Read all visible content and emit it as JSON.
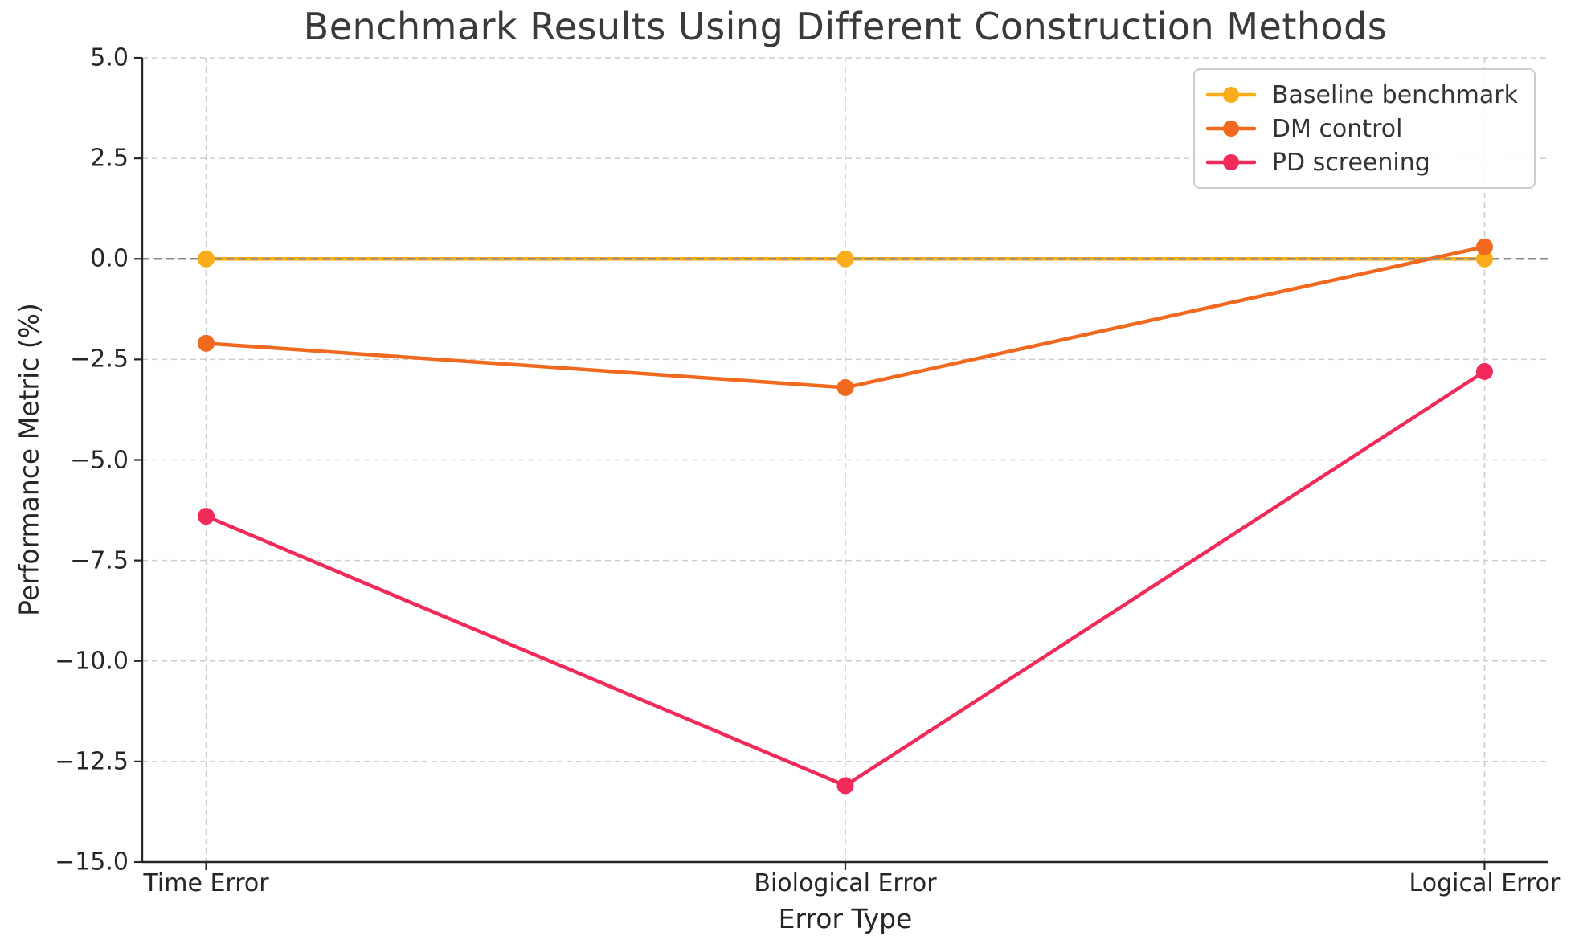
{
  "chart_data": {
    "type": "line",
    "title": "Benchmark Results Using Different Construction Methods",
    "xlabel": "Error Type",
    "ylabel": "Performance Metric (%)",
    "categories": [
      "Time Error",
      "Biological Error",
      "Logical Error"
    ],
    "series": [
      {
        "name": "Baseline benchmark",
        "values": [
          0.0,
          0.0,
          0.0
        ],
        "color": "#FAAD1A"
      },
      {
        "name": "DM control",
        "values": [
          -2.1,
          -3.2,
          0.3
        ],
        "color": "#F0691F"
      },
      {
        "name": "PD screening",
        "values": [
          -6.4,
          -13.1,
          -2.8
        ],
        "color": "#F02B5C"
      }
    ],
    "ylim": [
      -15.0,
      5.0
    ],
    "yticks": [
      5.0,
      2.5,
      0.0,
      -2.5,
      -5.0,
      -7.5,
      -10.0,
      -12.5,
      -15.0
    ],
    "ytick_labels": [
      "5.0",
      "2.5",
      "0.0",
      "−2.5",
      "−5.0",
      "−7.5",
      "−10.0",
      "−12.5",
      "−15.0"
    ],
    "grid": true,
    "grid_style": "dashed",
    "legend_position": "upper right",
    "zero_line": true,
    "colors": {
      "grid": "#cdcdcd",
      "zero_line": "#8a8a8a",
      "spine": "#262626",
      "text": "#262626",
      "title_text": "#3a3a3a",
      "background": "#ffffff"
    }
  }
}
